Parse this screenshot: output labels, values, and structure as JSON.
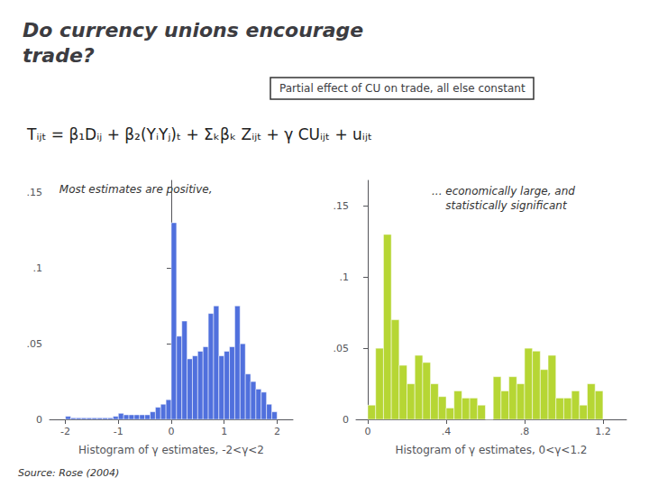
{
  "chart_data": [
    {
      "type": "histogram",
      "title": "Do currency unions encourage\ntrade?",
      "subtitle": "Partial effect of CU on trade, all else constant",
      "annotations": [
        "Tᵢⱼₜ = β₁Dᵢⱼ + β₂(YᵢYⱼ)ₜ + Σₖβₖ Zᵢⱼₜ + γ CUᵢⱼₜ + uᵢⱼₜ",
        "Most estimates are positive,",
        "Source: Rose (2004)"
      ],
      "xlabel": "Histogram of γ estimates, -2<γ<2",
      "bins": [
        -2.0,
        -1.9,
        -1.8,
        -1.7,
        -1.6,
        -1.5,
        -1.4,
        -1.3,
        -1.2,
        -1.1,
        -1.0,
        -0.9,
        -0.8,
        -0.7,
        -0.6,
        -0.5,
        -0.4,
        -0.3,
        -0.2,
        -0.1,
        0.0,
        0.1,
        0.2,
        0.3,
        0.4,
        0.5,
        0.6,
        0.7,
        0.8,
        0.9,
        1.0,
        1.1,
        1.2,
        1.3,
        1.4,
        1.5,
        1.6,
        1.7,
        1.8,
        1.9,
        2.0
      ],
      "values": [
        0.002,
        0.001,
        0.001,
        0.001,
        0.001,
        0.001,
        0.001,
        0.001,
        0.001,
        0.002,
        0.004,
        0.003,
        0.003,
        0.003,
        0.003,
        0.003,
        0.005,
        0.008,
        0.01,
        0.013,
        0.13,
        0.055,
        0.065,
        0.04,
        0.042,
        0.045,
        0.048,
        0.07,
        0.075,
        0.042,
        0.045,
        0.048,
        0.075,
        0.05,
        0.03,
        0.025,
        0.02,
        0.018,
        0.01,
        0.005
      ],
      "xlim": [
        -2.3,
        2.3
      ],
      "ylim": [
        0,
        0.158
      ],
      "xticks": [
        -2,
        -1,
        0,
        1,
        2
      ],
      "yticks": [
        0,
        {
          "value": 0.05,
          "label": ".05"
        },
        {
          "value": 0.1,
          "label": ".1"
        },
        {
          "value": 0.15,
          "label": ".15"
        }
      ],
      "grid": false
    },
    {
      "type": "histogram",
      "annotations": [
        "... economically large, and\n    statistically significant"
      ],
      "xlabel": "Histogram of γ estimates, 0<γ<1.2",
      "bins": [
        0.0,
        0.04,
        0.08,
        0.12,
        0.16,
        0.2,
        0.24,
        0.28,
        0.32,
        0.36,
        0.4,
        0.44,
        0.48,
        0.52,
        0.56,
        0.6,
        0.64,
        0.68,
        0.72,
        0.76,
        0.8,
        0.84,
        0.88,
        0.92,
        0.96,
        1.0,
        1.04,
        1.08,
        1.12,
        1.16,
        1.2
      ],
      "values": [
        0.01,
        0.05,
        0.13,
        0.07,
        0.038,
        0.025,
        0.045,
        0.04,
        0.025,
        0.016,
        0.008,
        0.02,
        0.015,
        0.015,
        0.01,
        0.0,
        0.03,
        0.02,
        0.03,
        0.025,
        0.05,
        0.048,
        0.035,
        0.045,
        0.015,
        0.015,
        0.02,
        0.01,
        0.025,
        0.02
      ],
      "xlim": [
        -0.06,
        1.32
      ],
      "ylim": [
        0,
        0.168
      ],
      "xticks": [
        0,
        {
          "value": 0.4,
          "label": ".4"
        },
        {
          "value": 0.8,
          "label": ".8"
        },
        1.2
      ],
      "yticks": [
        0,
        {
          "value": 0.05,
          "label": ".05"
        },
        {
          "value": 0.1,
          "label": ".1"
        },
        {
          "value": 0.15,
          "label": ".15"
        }
      ],
      "grid": false
    }
  ]
}
